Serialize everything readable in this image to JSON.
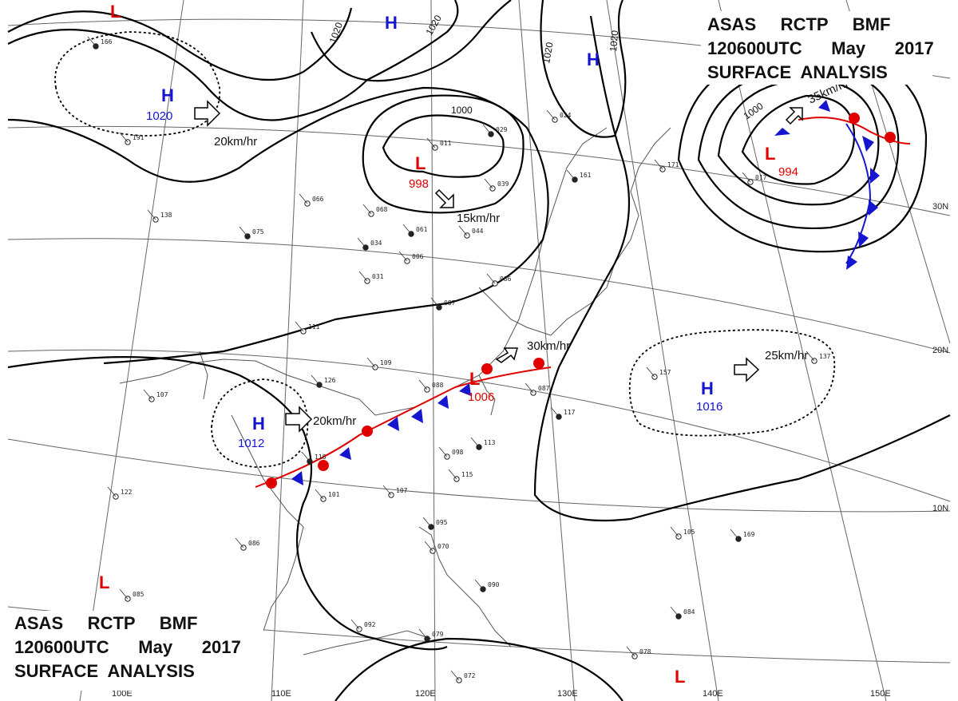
{
  "header": {
    "line1": "ASAS     RCTP     BMF",
    "line2": "120600UTC      May      2017",
    "line3": "SURFACE  ANALYSIS"
  },
  "isobar_labels": [
    "1020",
    "1020",
    "1020",
    "1020",
    "1000",
    "1000"
  ],
  "systems": [
    {
      "kind": "H",
      "value": "1020",
      "motion": "20km/hr"
    },
    {
      "kind": "L",
      "value": "998",
      "motion": "15km/hr"
    },
    {
      "kind": "L",
      "value": "994",
      "motion": "35km/hr"
    },
    {
      "kind": "H",
      "value": "1012",
      "motion": "20km/hr"
    },
    {
      "kind": "L",
      "value": "1006",
      "motion": "30km/hr"
    },
    {
      "kind": "H",
      "value": "1016",
      "motion": "25km/hr"
    },
    {
      "kind": "H",
      "value": ""
    },
    {
      "kind": "H",
      "value": ""
    },
    {
      "kind": "L",
      "value": ""
    },
    {
      "kind": "L",
      "value": ""
    },
    {
      "kind": "L",
      "value": ""
    }
  ],
  "lat_labels": [
    "30N",
    "20N",
    "10N"
  ],
  "lon_labels": [
    "100E",
    "110E",
    "120E",
    "130E",
    "140E",
    "150E"
  ],
  "colors": {
    "high": "#1515d0",
    "low": "#e00000",
    "isobar": "#000000",
    "coast": "#555555",
    "grid": "#666666",
    "warm_front": "#e00000",
    "cold_front": "#1515d0"
  },
  "stations": [
    "166",
    "191",
    "138",
    "075",
    "066",
    "068",
    "034",
    "006",
    "031",
    "061",
    "044",
    "011",
    "029",
    "039",
    "086",
    "087",
    "111",
    "109",
    "126",
    "088",
    "107",
    "118",
    "101",
    "098",
    "113",
    "115",
    "107",
    "095",
    "070",
    "086",
    "090",
    "085",
    "092",
    "079",
    "072",
    "078",
    "084",
    "122",
    "105",
    "169",
    "157",
    "137",
    "117",
    "087",
    "024",
    "161",
    "171",
    "017"
  ]
}
